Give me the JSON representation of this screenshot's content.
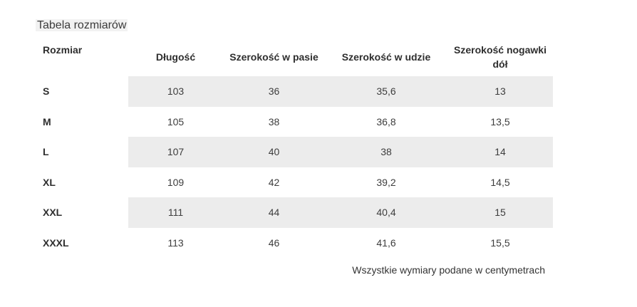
{
  "title": "Tabela rozmiarów",
  "table": {
    "columns": [
      "Rozmiar",
      "Długość",
      "Szerokość w pasie",
      "Szerokość w udzie",
      "Szerokość nogawki dół"
    ],
    "rows": [
      {
        "size": "S",
        "values": [
          "103",
          "36",
          "35,6",
          "13"
        ]
      },
      {
        "size": "M",
        "values": [
          "105",
          "38",
          "36,8",
          "13,5"
        ]
      },
      {
        "size": "L",
        "values": [
          "107",
          "40",
          "38",
          "14"
        ]
      },
      {
        "size": "XL",
        "values": [
          "109",
          "42",
          "39,2",
          "14,5"
        ]
      },
      {
        "size": "XXL",
        "values": [
          "111",
          "44",
          "40,4",
          "15"
        ]
      },
      {
        "size": "XXXL",
        "values": [
          "113",
          "46",
          "41,6",
          "15,5"
        ]
      }
    ]
  },
  "footer_note": "Wszystkie wymiary podane w centymetrach",
  "colors": {
    "stripe": "#ececec",
    "title_highlight": "#f2f2f2",
    "heading_text": "#2e2e2e",
    "body_text": "#3d3d3d",
    "page_bg": "#ffffff"
  }
}
